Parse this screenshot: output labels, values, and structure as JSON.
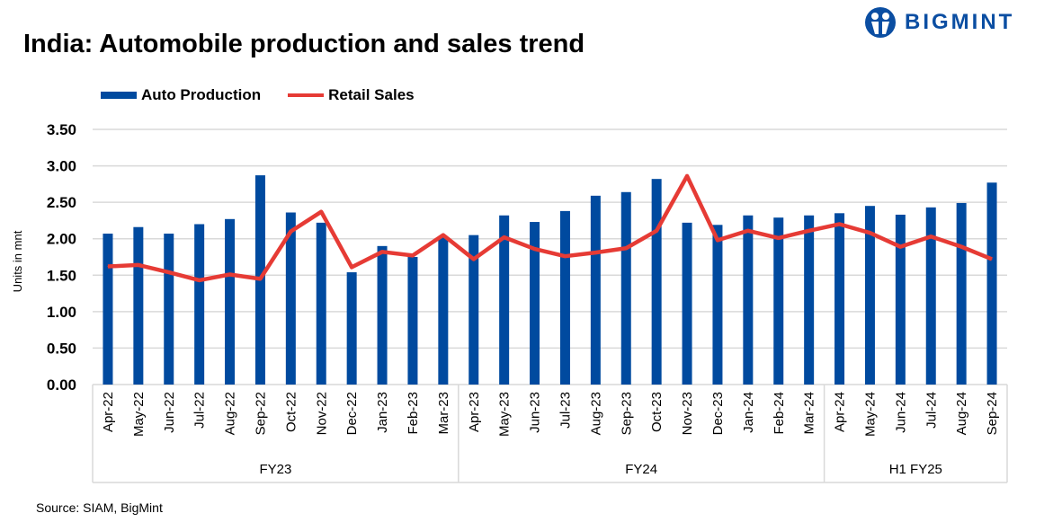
{
  "brand": {
    "name": "BIGMINT",
    "color": "#0b4ea2"
  },
  "source": "Source: SIAM, BigMint",
  "chart_data": {
    "type": "bar",
    "title": "India: Automobile production and sales trend",
    "ylabel": "Units in mnt",
    "xlabel": "",
    "ylim": [
      0,
      3.5
    ],
    "yticks": [
      "0.00",
      "0.50",
      "1.00",
      "1.50",
      "2.00",
      "2.50",
      "3.00",
      "3.50"
    ],
    "grid": true,
    "legend": "top-left",
    "categories": [
      "Apr-22",
      "May-22",
      "Jun-22",
      "Jul-22",
      "Aug-22",
      "Sep-22",
      "Oct-22",
      "Nov-22",
      "Dec-22",
      "Jan-23",
      "Feb-23",
      "Mar-23",
      "Apr-23",
      "May-23",
      "Jun-23",
      "Jul-23",
      "Aug-23",
      "Sep-23",
      "Oct-23",
      "Nov-23",
      "Dec-23",
      "Jan-24",
      "Feb-24",
      "Mar-24",
      "Apr-24",
      "May-24",
      "Jun-24",
      "Jul-24",
      "Aug-24",
      "Sep-24"
    ],
    "groups": [
      {
        "label": "FY23",
        "count": 12
      },
      {
        "label": "FY24",
        "count": 12
      },
      {
        "label": "H1 FY25",
        "count": 6
      }
    ],
    "series": [
      {
        "name": "Auto Production",
        "type": "bar",
        "color": "#004a9f",
        "values": [
          2.07,
          2.16,
          2.07,
          2.2,
          2.27,
          2.87,
          2.36,
          2.22,
          1.54,
          1.9,
          1.75,
          2.02,
          2.05,
          2.32,
          2.23,
          2.38,
          2.59,
          2.64,
          2.82,
          2.22,
          2.19,
          2.32,
          2.29,
          2.32,
          2.35,
          2.45,
          2.33,
          2.43,
          2.49,
          2.77
        ]
      },
      {
        "name": "Retail Sales",
        "type": "line",
        "color": "#e63b35",
        "values": [
          1.62,
          1.64,
          1.54,
          1.43,
          1.51,
          1.45,
          2.1,
          2.37,
          1.61,
          1.82,
          1.77,
          2.05,
          1.72,
          2.02,
          1.86,
          1.76,
          1.81,
          1.87,
          2.11,
          2.86,
          1.98,
          2.11,
          2.01,
          2.11,
          2.2,
          2.08,
          1.89,
          2.03,
          1.89,
          1.72
        ]
      }
    ]
  }
}
